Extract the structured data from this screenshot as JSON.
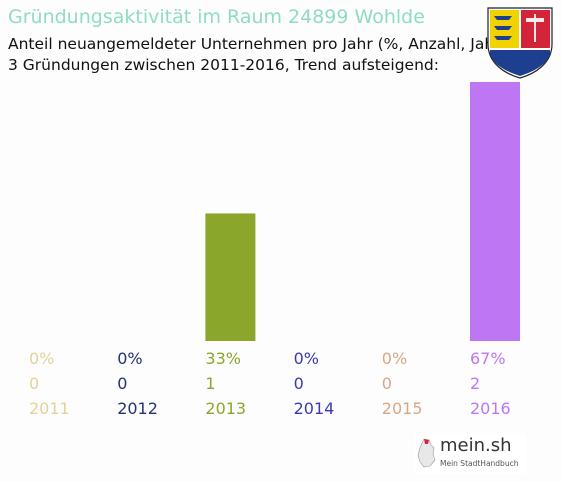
{
  "header": {
    "title": "Gründungsaktivität im Raum 24899 Wohlde",
    "subtitle_line1": "Anteil neuangemeldeter Unternehmen pro Jahr (%, Anzahl, Jahr)",
    "subtitle_line2": "3 Gründungen zwischen 2011-2016, Trend aufsteigend:"
  },
  "logo": {
    "text": "mein.sh",
    "subtext": "Mein StadtHandbuch"
  },
  "crest": {
    "label": "Wappen Schleswig-Holstein",
    "colors": {
      "yellow": "#f2d300",
      "blue": "#1e3f8f",
      "red": "#d4243a",
      "white": "#ffffff"
    }
  },
  "chart_data": {
    "type": "bar",
    "categories": [
      "2011",
      "2012",
      "2013",
      "2014",
      "2015",
      "2016"
    ],
    "values": [
      0,
      0,
      33,
      0,
      0,
      67
    ],
    "percent_labels": [
      "0%",
      "0%",
      "33%",
      "0%",
      "0%",
      "67%"
    ],
    "count_labels": [
      "0",
      "0",
      "1",
      "0",
      "0",
      "2"
    ],
    "colors": [
      "#e3d39a",
      "#24346f",
      "#8aa72c",
      "#3a3ab0",
      "#d7a886",
      "#be76f2"
    ],
    "ylim": [
      0,
      67
    ]
  }
}
